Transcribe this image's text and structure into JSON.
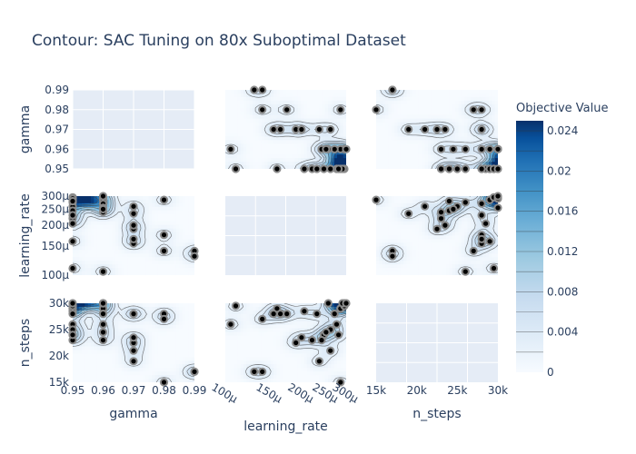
{
  "chart_data": {
    "type": "contour",
    "title": "Contour: SAC Tuning on 80x Suboptimal Dataset",
    "params": [
      {
        "name": "gamma",
        "label": "gamma",
        "range": [
          0.95,
          0.99
        ],
        "ticks": [
          0.95,
          0.96,
          0.97,
          0.98,
          0.99
        ],
        "tick_labels": [
          "0.95",
          "0.96",
          "0.97",
          "0.98",
          "0.99"
        ]
      },
      {
        "name": "learning_rate",
        "label": "learning_rate",
        "scale": "log",
        "range": [
          0.0001,
          0.0003
        ],
        "ticks": [
          0.0001,
          0.00015,
          0.0002,
          0.00025,
          0.0003
        ],
        "tick_labels": [
          "100μ",
          "150μ",
          "200μ",
          "250μ",
          "300μ"
        ]
      },
      {
        "name": "n_steps",
        "label": "n_steps",
        "range": [
          15000,
          30000
        ],
        "ticks": [
          15000,
          20000,
          25000,
          30000
        ],
        "tick_labels": [
          "15k",
          "20k",
          "25k",
          "30k"
        ]
      }
    ],
    "colorbar": {
      "title": "Objective Value",
      "range": [
        0,
        0.025
      ],
      "ticks": [
        0,
        0.004,
        0.008,
        0.012,
        0.016,
        0.02,
        0.024
      ],
      "tick_labels": [
        "0",
        "0.004",
        "0.008",
        "0.012",
        "0.016",
        "0.02",
        "0.024"
      ],
      "colors": [
        "#f7fbff",
        "#deebf7",
        "#c6dbef",
        "#9ecae1",
        "#6baed6",
        "#4292c6",
        "#2171b5",
        "#08519c",
        "#08306b"
      ]
    },
    "trials": [
      {
        "gamma": 0.95,
        "learning_rate": 0.000285,
        "n_steps": 29000
      },
      {
        "gamma": 0.95,
        "learning_rate": 0.000275,
        "n_steps": 26000
      },
      {
        "gamma": 0.95,
        "learning_rate": 0.00026,
        "n_steps": 25000
      },
      {
        "gamma": 0.95,
        "learning_rate": 0.000245,
        "n_steps": 24000
      },
      {
        "gamma": 0.95,
        "learning_rate": 0.00022,
        "n_steps": 23000
      },
      {
        "gamma": 0.95,
        "learning_rate": 0.000205,
        "n_steps": 28500
      },
      {
        "gamma": 0.95,
        "learning_rate": 0.00016,
        "n_steps": 29000
      },
      {
        "gamma": 0.95,
        "learning_rate": 0.00011,
        "n_steps": 29500
      },
      {
        "gamma": 0.96,
        "learning_rate": 0.000295,
        "n_steps": 30000
      },
      {
        "gamma": 0.96,
        "learning_rate": 0.000285,
        "n_steps": 29000
      },
      {
        "gamma": 0.96,
        "learning_rate": 0.00027,
        "n_steps": 28000
      },
      {
        "gamma": 0.96,
        "learning_rate": 0.000255,
        "n_steps": 30000
      },
      {
        "gamma": 0.96,
        "learning_rate": 0.00024,
        "n_steps": 23000
      },
      {
        "gamma": 0.96,
        "learning_rate": 0.000105,
        "n_steps": 26000
      },
      {
        "gamma": 0.97,
        "learning_rate": 0.00026,
        "n_steps": 21000
      },
      {
        "gamma": 0.97,
        "learning_rate": 0.000235,
        "n_steps": 19000
      },
      {
        "gamma": 0.97,
        "learning_rate": 0.000155,
        "n_steps": 28000
      },
      {
        "gamma": 0.98,
        "learning_rate": 0.000175,
        "n_steps": 28000
      },
      {
        "gamma": 0.98,
        "learning_rate": 0.00014,
        "n_steps": 27000
      },
      {
        "gamma": 0.98,
        "learning_rate": 0.000285,
        "n_steps": 15000
      },
      {
        "gamma": 0.99,
        "learning_rate": 0.00014,
        "n_steps": 17000
      }
    ],
    "trials_extra": [
      {
        "gamma": 0.99,
        "learning_rate": 0.00013,
        "n_steps": 17000
      },
      {
        "gamma": 0.97,
        "learning_rate": 0.00019,
        "n_steps": 22500
      },
      {
        "gamma": 0.96,
        "learning_rate": 0.00025,
        "n_steps": 24500
      },
      {
        "gamma": 0.97,
        "learning_rate": 0.0002,
        "n_steps": 23500
      },
      {
        "gamma": 0.95,
        "learning_rate": 0.000295,
        "n_steps": 29500
      },
      {
        "gamma": 0.95,
        "learning_rate": 0.00029,
        "n_steps": 30000
      },
      {
        "gamma": 0.96,
        "learning_rate": 0.0003,
        "n_steps": 30000
      },
      {
        "gamma": 0.95,
        "learning_rate": 0.00023,
        "n_steps": 28000
      },
      {
        "gamma": 0.97,
        "learning_rate": 0.000165,
        "n_steps": 28000
      },
      {
        "gamma": 0.95,
        "learning_rate": 0.00028,
        "n_steps": 24000
      }
    ],
    "peaks": [
      {
        "gamma": 0.955,
        "learning_rate": 0.000285,
        "n_steps": 30500,
        "value": 0.024
      },
      {
        "gamma": 0.95,
        "learning_rate": 0.0003,
        "n_steps": 30500,
        "value": 0.02
      }
    ]
  }
}
